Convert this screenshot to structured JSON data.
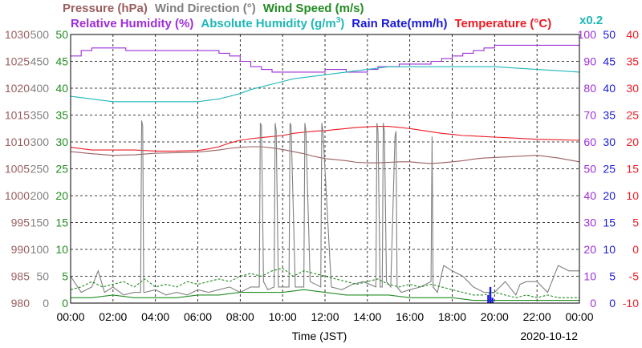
{
  "chart_data": {
    "type": "line",
    "date": "2020-10-12",
    "xlabel": "Time (JST)",
    "xlim": [
      "00:00",
      "24:00"
    ],
    "x_ticks": [
      "00:00",
      "02:00",
      "04:00",
      "06:00",
      "08:00",
      "10:00",
      "12:00",
      "14:00",
      "16:00",
      "18:00",
      "20:00",
      "22:00",
      "00:00"
    ],
    "grid": true,
    "legend": {
      "row1": [
        {
          "label": "Pressure (hPa)",
          "color": "#9b5f5f"
        },
        {
          "label": "Wind Direction (°)",
          "color": "#808080"
        },
        {
          "label": "Wind Speed (m/s)",
          "color": "#218c21"
        }
      ],
      "row2": [
        {
          "label": "Relative Humidity (%)",
          "color": "#9d2ed6"
        },
        {
          "label": "Absolute Humidity (g/m",
          "sup": "3",
          "tail": ")",
          "color": "#1fb7b7"
        },
        {
          "label": "Rain Rate(mm/h)",
          "color": "#1a1ad8"
        },
        {
          "label": "Temperature (°C)",
          "color": "#ee1b24"
        }
      ],
      "multiplier": "x0.2"
    },
    "axes": {
      "pressure": {
        "color": "#9b5f5f",
        "range": [
          980,
          1030
        ],
        "ticks": [
          "980",
          "985",
          "990",
          "995",
          "1000",
          "1005",
          "1010",
          "1015",
          "1020",
          "1025",
          "1030"
        ]
      },
      "wind_direction": {
        "color": "#808080",
        "range": [
          0,
          500
        ],
        "ticks": [
          "0",
          "50",
          "100",
          "150",
          "200",
          "250",
          "300",
          "350",
          "400",
          "450",
          "500"
        ]
      },
      "wind_speed": {
        "color": "#218c21",
        "range": [
          0,
          50
        ],
        "ticks": [
          "0",
          "5",
          "10",
          "15",
          "20",
          "25",
          "30",
          "35",
          "40",
          "45",
          "50"
        ]
      },
      "relative_humidity": {
        "color": "#9d2ed6",
        "range": [
          0,
          100
        ],
        "ticks": [
          "0",
          "10",
          "20",
          "30",
          "40",
          "50",
          "60",
          "70",
          "80",
          "90",
          "100"
        ]
      },
      "rain_rate": {
        "color": "#1a1ad8",
        "range": [
          0,
          50
        ],
        "ticks": [
          "0",
          "5",
          "10",
          "15",
          "20",
          "25",
          "30",
          "35",
          "40",
          "45",
          "50"
        ]
      },
      "temperature": {
        "color": "#ee1b24",
        "range": [
          -10,
          40
        ],
        "ticks": [
          "-10",
          "-5",
          "0",
          "5",
          "10",
          "15",
          "20",
          "25",
          "30",
          "35",
          "40"
        ]
      }
    },
    "series": [
      {
        "name": "Temperature (°C)",
        "axis": "temperature",
        "color": "#ee1b24",
        "x": [
          0,
          1,
          2,
          3,
          4,
          5,
          6,
          6.5,
          7,
          7.5,
          8,
          8.5,
          9,
          9.5,
          10,
          10.5,
          11,
          11.5,
          12,
          12.5,
          13,
          13.5,
          14,
          14.5,
          15,
          15.5,
          16,
          16.5,
          17,
          17.5,
          18,
          18.5,
          19,
          19.5,
          20,
          21,
          22,
          23,
          24
        ],
        "y": [
          19,
          18.5,
          18.5,
          18.5,
          18.3,
          18.3,
          18.4,
          18.7,
          19.1,
          19.8,
          20.3,
          20.6,
          20.8,
          21.0,
          21.2,
          21.6,
          21.8,
          22.0,
          22.1,
          22.3,
          22.5,
          22.7,
          22.8,
          22.9,
          22.9,
          22.7,
          22.5,
          22.2,
          21.9,
          21.6,
          21.4,
          21.2,
          21.1,
          21.0,
          20.9,
          20.7,
          20.5,
          20.4,
          20.3
        ]
      },
      {
        "name": "Pressure (hPa)",
        "axis": "pressure",
        "color": "#9b5f5f",
        "x": [
          0,
          1,
          2,
          3,
          4,
          5,
          6,
          6.5,
          7,
          7.5,
          8,
          8.5,
          9,
          9.5,
          10,
          10.5,
          11,
          11.5,
          12,
          12.5,
          13,
          13.5,
          14,
          14.5,
          15,
          15.5,
          16,
          16.5,
          17,
          17.5,
          18,
          18.5,
          19,
          19.5,
          20,
          21,
          22,
          23,
          24
        ],
        "y": [
          1008.2,
          1007.8,
          1007.5,
          1007.6,
          1007.9,
          1008.0,
          1008.1,
          1008.3,
          1008.5,
          1008.8,
          1009.0,
          1009.1,
          1009.1,
          1008.9,
          1008.6,
          1008.2,
          1007.8,
          1007.3,
          1006.9,
          1006.7,
          1006.5,
          1006.2,
          1006.1,
          1006.1,
          1006.2,
          1006.3,
          1006.3,
          1006.1,
          1006.0,
          1006.1,
          1006.3,
          1006.5,
          1006.8,
          1007.0,
          1007.1,
          1007.3,
          1007.5,
          1007.0,
          1006.3
        ]
      },
      {
        "name": "Relative Humidity (%)",
        "axis": "relative_humidity",
        "color": "#9d2ed6",
        "x": [
          0,
          0.5,
          1,
          2,
          2.6,
          3.5,
          4.5,
          5.5,
          6,
          6.5,
          7,
          7.5,
          8,
          8.5,
          9,
          9.5,
          10,
          10.5,
          11,
          11.5,
          12,
          12.5,
          13,
          13.5,
          14,
          14.5,
          15,
          15.5,
          16,
          16.5,
          17,
          17.5,
          18,
          18.5,
          19,
          19.5,
          20,
          21,
          22,
          23,
          24
        ],
        "y": [
          92,
          94,
          95,
          95,
          94,
          94,
          94,
          94,
          94,
          94,
          93,
          92,
          90,
          88,
          87,
          86,
          86,
          86,
          86,
          86,
          87,
          87,
          86,
          86,
          87,
          88,
          88,
          89,
          89,
          89,
          90,
          91,
          92,
          93,
          94,
          95,
          96,
          96,
          96,
          96,
          96
        ],
        "step": true
      },
      {
        "name": "Absolute Humidity (g/m3)",
        "axis": "relative_humidity",
        "color": "#1fb7b7",
        "scale": "x0.2",
        "x": [
          0,
          1,
          2,
          3,
          4,
          5,
          6,
          6.5,
          7,
          7.5,
          8,
          8.5,
          9,
          9.5,
          10,
          10.5,
          11,
          11.5,
          12,
          12.5,
          13,
          13.5,
          14,
          14.5,
          15,
          15.5,
          16,
          16.5,
          17,
          17.5,
          18,
          18.5,
          19,
          19.5,
          20,
          21,
          22,
          23,
          24
        ],
        "y": [
          77,
          76,
          75,
          75,
          75,
          75,
          75,
          75.5,
          76,
          77,
          78,
          79.5,
          80.5,
          81.5,
          82.5,
          83.5,
          84,
          84.5,
          85,
          85.5,
          86,
          86.5,
          87,
          87.5,
          88,
          88,
          88,
          88,
          88,
          88,
          88,
          88,
          88,
          88,
          88,
          87.5,
          87,
          86.5,
          86
        ]
      },
      {
        "name": "Wind Direction (°)",
        "axis": "wind_direction",
        "color": "#808080",
        "x": [
          0,
          0.5,
          1,
          1.3,
          1.6,
          2,
          2.5,
          3,
          3.3,
          3.35,
          3.4,
          3.45,
          3.5,
          4,
          4.5,
          5,
          5.5,
          6,
          6.5,
          7,
          7.5,
          8,
          8.5,
          8.9,
          8.95,
          9.0,
          9.1,
          9.3,
          9.6,
          9.65,
          9.7,
          9.8,
          10.3,
          10.35,
          10.4,
          10.6,
          11.0,
          11.05,
          11.1,
          11.3,
          11.8,
          11.85,
          11.9,
          12.3,
          12.8,
          13.3,
          13.8,
          14.4,
          14.45,
          14.5,
          14.6,
          14.7,
          14.75,
          14.8,
          14.9,
          15.1,
          15.3,
          15.35,
          15.4,
          15.6,
          16,
          16.5,
          17,
          17.05,
          17.1,
          17.3,
          17.6,
          18,
          18.5,
          19,
          19.5,
          20,
          20.5,
          21,
          21.2,
          21.5,
          22,
          22.5,
          23,
          23.5,
          24
        ],
        "y": [
          50,
          20,
          30,
          60,
          20,
          30,
          15,
          20,
          20,
          340,
          330,
          20,
          20,
          25,
          15,
          20,
          15,
          25,
          20,
          25,
          30,
          20,
          30,
          30,
          335,
          330,
          40,
          25,
          30,
          335,
          320,
          30,
          30,
          335,
          330,
          30,
          30,
          335,
          320,
          40,
          30,
          335,
          320,
          30,
          25,
          35,
          40,
          30,
          335,
          320,
          30,
          30,
          335,
          320,
          40,
          30,
          310,
          320,
          30,
          20,
          25,
          30,
          40,
          310,
          30,
          20,
          70,
          60,
          50,
          30,
          20,
          20,
          40,
          15,
          35,
          40,
          40,
          20,
          70,
          60,
          60
        ]
      },
      {
        "name": "Wind Speed (m/s)",
        "axis": "wind_speed",
        "color": "#218c21",
        "x": [
          0,
          0.5,
          1,
          1.5,
          2,
          2.5,
          3,
          3.5,
          4,
          4.5,
          5,
          5.5,
          6,
          6.5,
          7,
          7.5,
          8,
          8.5,
          9,
          9.5,
          10,
          10.5,
          11,
          11.5,
          12,
          12.5,
          13,
          13.5,
          14,
          14.5,
          15,
          15.5,
          16,
          16.5,
          17,
          17.5,
          18,
          18.5,
          19,
          19.5,
          20,
          20.5,
          21,
          21.5,
          22,
          22.5,
          23,
          23.5,
          24
        ],
        "y": [
          2.5,
          3,
          4,
          3,
          3.5,
          4,
          3,
          4.5,
          3,
          3.5,
          3,
          4,
          3.5,
          4,
          4.5,
          4,
          5,
          5.5,
          5,
          6,
          6.5,
          5,
          6,
          5.5,
          5,
          4.5,
          4,
          3.5,
          4,
          4.5,
          3.5,
          3,
          3.5,
          3,
          3.5,
          3,
          2.5,
          2,
          1.5,
          1.5,
          2,
          1.5,
          1,
          1.5,
          1,
          1.5,
          1,
          1,
          1
        ],
        "dashed": true
      },
      {
        "name": "Wind Speed (m/s)",
        "axis": "wind_speed",
        "color": "#218c21",
        "x": [
          0,
          1,
          2,
          3,
          4,
          5,
          6,
          7,
          8,
          9,
          10,
          11,
          12,
          13,
          14,
          15,
          16,
          17,
          18,
          19,
          20,
          21,
          22,
          23,
          24
        ],
        "y": [
          1,
          1,
          1.5,
          1,
          1,
          1,
          1.5,
          1.5,
          2,
          2,
          2,
          2.5,
          2,
          1.5,
          1.5,
          1.5,
          1,
          1,
          1,
          0.5,
          0.5,
          0.5,
          0.5,
          0.5,
          0.5
        ]
      },
      {
        "name": "Rain Rate(mm/h)",
        "axis": "rain_rate",
        "color": "#1a1ad8",
        "x": [
          19.7,
          19.8,
          19.9
        ],
        "y": [
          1.5,
          3,
          1.0
        ],
        "bars": true
      }
    ]
  }
}
